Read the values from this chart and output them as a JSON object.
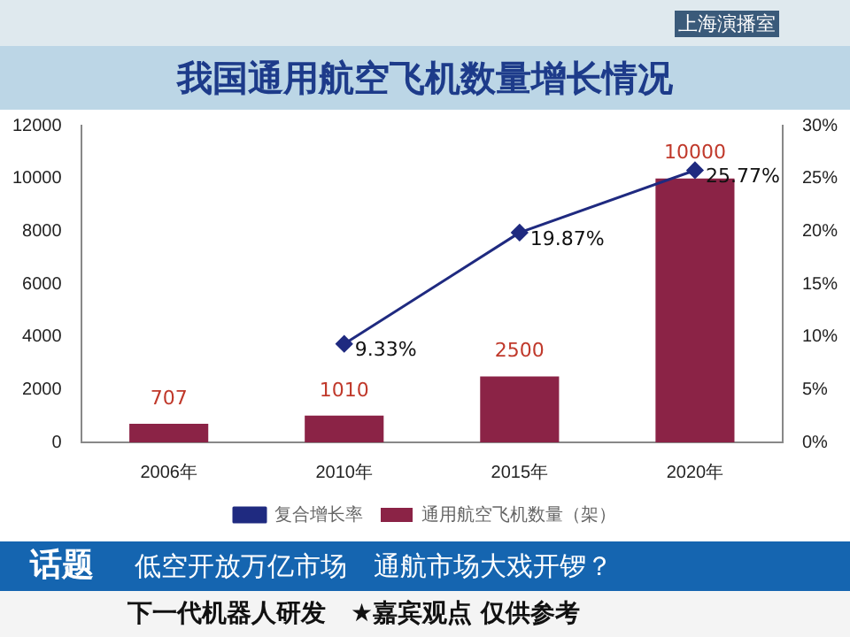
{
  "chart_data": {
    "type": "bar",
    "title": "我国通用航空飞机数量增长情况",
    "categories": [
      "2006年",
      "2010年",
      "2015年",
      "2020年"
    ],
    "series": [
      {
        "name": "通用航空飞机数量（架）",
        "color": "#8b2346",
        "values": [
          707,
          1010,
          2500,
          10000
        ],
        "value_labels": [
          "707",
          "1010",
          "2500",
          "10000"
        ]
      },
      {
        "name": "复合增长率",
        "type": "line",
        "axis": "y2",
        "color": "#1f2a80",
        "values": [
          null,
          9.33,
          19.87,
          25.77
        ],
        "value_labels": [
          null,
          "9.33%",
          "19.87%",
          "25.77%"
        ]
      }
    ],
    "ylim": [
      0,
      12000
    ],
    "yticks": [
      0,
      2000,
      4000,
      6000,
      8000,
      10000,
      12000
    ],
    "y2lim": [
      0,
      30
    ],
    "y2ticks": [
      {
        "value": 0,
        "label": "0%"
      },
      {
        "value": 5,
        "label": "5%"
      },
      {
        "value": 10,
        "label": "10%"
      },
      {
        "value": 15,
        "label": "15%"
      },
      {
        "value": 20,
        "label": "20%"
      },
      {
        "value": 25,
        "label": "25%"
      },
      {
        "value": 30,
        "label": "30%"
      }
    ],
    "legend": "bottom",
    "marker": "diamond",
    "line_style": "solid",
    "annotations": [
      "上海演播室",
      "话题",
      "低空开放万亿市场　通航市场大戏开锣？",
      "下一代机器人研发",
      "★嘉宾观点 仅供参考"
    ]
  }
}
